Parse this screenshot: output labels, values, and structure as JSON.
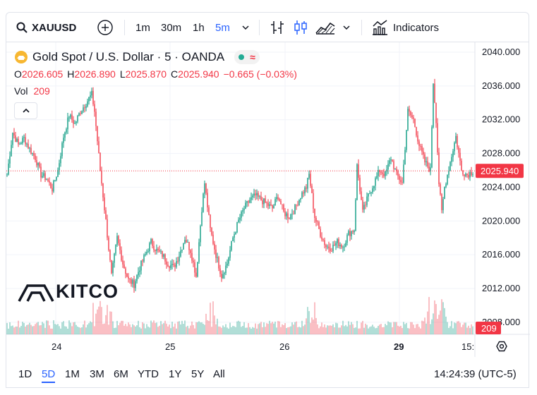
{
  "toolbar": {
    "symbol": "XAUUSD",
    "intervals": [
      "1m",
      "30m",
      "1h",
      "5m"
    ],
    "active_interval": "5m",
    "indicators_label": "Indicators"
  },
  "legend": {
    "title": "Gold Spot / U.S. Dollar · 5 · OANDA",
    "open_label": "O",
    "open": "2026.605",
    "high_label": "H",
    "high": "2026.890",
    "low_label": "L",
    "low": "2025.870",
    "close_label": "C",
    "close": "2025.940",
    "change": "−0.665 (−0.03%)",
    "vol_label": "Vol",
    "vol_value": "209"
  },
  "watermark": {
    "brand": "KITCO"
  },
  "price_axis": {
    "ticks": [
      "2040.000",
      "2036.000",
      "2032.000",
      "2028.000",
      "2024.000",
      "2020.000",
      "2016.000",
      "2012.000",
      "2008.000"
    ],
    "current_price": "2025.940",
    "volume_tag": "209"
  },
  "time_axis": {
    "labels": [
      "24",
      "25",
      "26",
      "29",
      "15:"
    ]
  },
  "bottom_bar": {
    "ranges": [
      "1D",
      "5D",
      "1M",
      "3M",
      "6M",
      "YTD",
      "1Y",
      "5Y",
      "All"
    ],
    "active_range": "5D",
    "clock": "14:24:39 (UTC-5)"
  },
  "colors": {
    "up": "#089981",
    "down": "#f23645",
    "accent": "#2962ff",
    "grid": "#f0f3fa"
  },
  "chart_data": {
    "type": "candlestick",
    "title": "Gold Spot / U.S. Dollar · 5 · OANDA",
    "ylim": [
      2008,
      2041
    ],
    "x_labels": [
      "24",
      "25",
      "26",
      "29",
      "15:"
    ],
    "close_path": [
      [
        0,
        2025.5
      ],
      [
        4,
        2030.5
      ],
      [
        8,
        2029.0
      ],
      [
        12,
        2029.8
      ],
      [
        16,
        2028.5
      ],
      [
        20,
        2027.5
      ],
      [
        24,
        2025.5
      ],
      [
        28,
        2025.0
      ],
      [
        32,
        2023.8
      ],
      [
        36,
        2026.0
      ],
      [
        40,
        2030.0
      ],
      [
        44,
        2032.5
      ],
      [
        48,
        2031.5
      ],
      [
        52,
        2033.0
      ],
      [
        56,
        2034.0
      ],
      [
        60,
        2035.0
      ],
      [
        62,
        2033.0
      ],
      [
        66,
        2026.0
      ],
      [
        70,
        2020.0
      ],
      [
        74,
        2013.5
      ],
      [
        78,
        2018.0
      ],
      [
        82,
        2015.0
      ],
      [
        86,
        2013.0
      ],
      [
        90,
        2012.5
      ],
      [
        94,
        2014.5
      ],
      [
        98,
        2016.0
      ],
      [
        102,
        2017.5
      ],
      [
        106,
        2016.5
      ],
      [
        110,
        2016.0
      ],
      [
        114,
        2015.0
      ],
      [
        118,
        2014.5
      ],
      [
        122,
        2016.0
      ],
      [
        126,
        2018.0
      ],
      [
        130,
        2016.5
      ],
      [
        134,
        2013.5
      ],
      [
        138,
        2021.5
      ],
      [
        140,
        2024.5
      ],
      [
        144,
        2019.0
      ],
      [
        148,
        2016.0
      ],
      [
        152,
        2013.5
      ],
      [
        156,
        2015.0
      ],
      [
        160,
        2018.0
      ],
      [
        164,
        2020.0
      ],
      [
        168,
        2021.5
      ],
      [
        172,
        2022.5
      ],
      [
        176,
        2023.0
      ],
      [
        180,
        2022.5
      ],
      [
        184,
        2022.0
      ],
      [
        188,
        2021.5
      ],
      [
        192,
        2023.0
      ],
      [
        196,
        2021.0
      ],
      [
        200,
        2020.5
      ],
      [
        204,
        2021.5
      ],
      [
        208,
        2023.0
      ],
      [
        212,
        2024.0
      ],
      [
        214,
        2025.5
      ],
      [
        218,
        2020.5
      ],
      [
        222,
        2018.5
      ],
      [
        226,
        2017.0
      ],
      [
        230,
        2016.8
      ],
      [
        234,
        2017.5
      ],
      [
        238,
        2017.0
      ],
      [
        242,
        2018.5
      ],
      [
        246,
        2019.0
      ],
      [
        248,
        2026.5
      ],
      [
        252,
        2021.0
      ],
      [
        256,
        2023.0
      ],
      [
        260,
        2024.5
      ],
      [
        264,
        2026.0
      ],
      [
        268,
        2025.5
      ],
      [
        272,
        2027.5
      ],
      [
        276,
        2025.5
      ],
      [
        280,
        2024.5
      ],
      [
        284,
        2033.0
      ],
      [
        288,
        2032.0
      ],
      [
        292,
        2029.0
      ],
      [
        296,
        2027.0
      ],
      [
        300,
        2026.0
      ],
      [
        302,
        2036.5
      ],
      [
        304,
        2032.0
      ],
      [
        306,
        2024.5
      ],
      [
        308,
        2021.0
      ],
      [
        310,
        2024.0
      ],
      [
        314,
        2027.0
      ],
      [
        318,
        2030.0
      ],
      [
        322,
        2026.0
      ],
      [
        326,
        2025.5
      ],
      [
        330,
        2025.9
      ]
    ],
    "volume_max": 1
  }
}
